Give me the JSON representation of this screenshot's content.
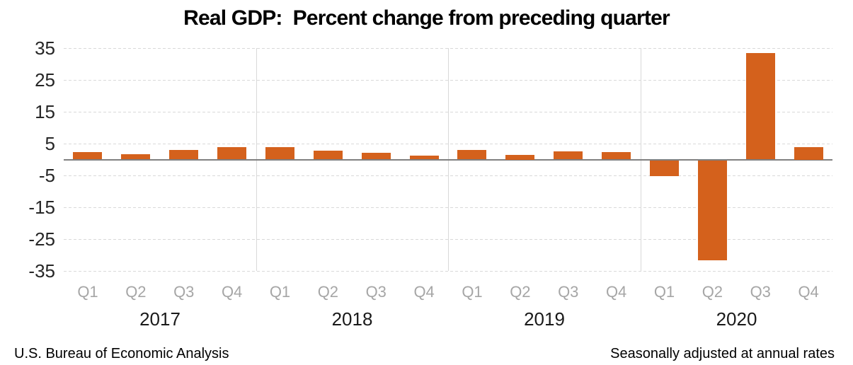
{
  "title": "Real GDP:  Percent change from preceding quarter",
  "footer": {
    "left": "U.S. Bureau of Economic Analysis",
    "right": "Seasonally adjusted at annual rates"
  },
  "colors": {
    "bar": "#d4611c",
    "gridline": "#d9d9d9",
    "zero_line": "#7f7f7f",
    "year_separator": "#d9d9d9",
    "quarter_label": "#a6a6a6",
    "tick_label": "#262626",
    "year_label": "#1a1a1a"
  },
  "chart_data": {
    "type": "bar",
    "title": "Real GDP:  Percent change from preceding quarter",
    "xlabel": "",
    "ylabel": "",
    "ylim": [
      -35,
      35
    ],
    "y_ticks": [
      35,
      25,
      15,
      5,
      -5,
      -15,
      -25,
      -35
    ],
    "grid": "horizontal-dashed",
    "legend": "none",
    "categories": [
      "2017 Q1",
      "2017 Q2",
      "2017 Q3",
      "2017 Q4",
      "2018 Q1",
      "2018 Q2",
      "2018 Q3",
      "2018 Q4",
      "2019 Q1",
      "2019 Q2",
      "2019 Q3",
      "2019 Q4",
      "2020 Q1",
      "2020 Q2",
      "2020 Q3",
      "2020 Q4"
    ],
    "quarter_labels": [
      "Q1",
      "Q2",
      "Q3",
      "Q4",
      "Q1",
      "Q2",
      "Q3",
      "Q4",
      "Q1",
      "Q2",
      "Q3",
      "Q4",
      "Q1",
      "Q2",
      "Q3",
      "Q4"
    ],
    "year_groups": [
      "2017",
      "2018",
      "2019",
      "2020"
    ],
    "values": [
      2.3,
      1.7,
      2.9,
      3.9,
      3.8,
      2.7,
      2.1,
      1.3,
      2.9,
      1.5,
      2.6,
      2.4,
      -5.0,
      -31.4,
      33.4,
      4.0
    ]
  }
}
